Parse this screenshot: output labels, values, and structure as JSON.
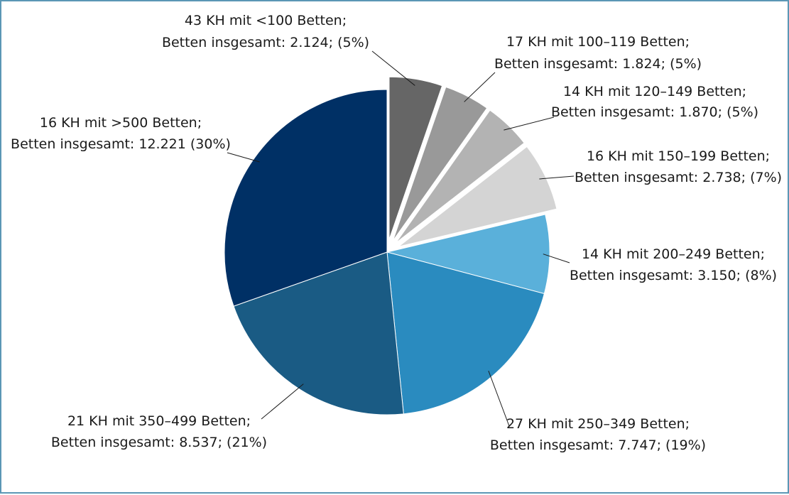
{
  "chart_data": {
    "type": "pie",
    "title": "",
    "slices": [
      {
        "label_line1": "43 KH mit <100 Betten;",
        "label_line2": "Betten insgesamt: 2.124; (5%)",
        "krankenhaeuser": 43,
        "betten": 2124,
        "percent": 5,
        "color": "#666666",
        "exploded": true
      },
      {
        "label_line1": "17 KH mit 100–119 Betten;",
        "label_line2": "Betten insgesamt: 1.824; (5%)",
        "krankenhaeuser": 17,
        "betten": 1824,
        "percent": 5,
        "color": "#999999",
        "exploded": true
      },
      {
        "label_line1": "14 KH mit 120–149 Betten;",
        "label_line2": "Betten insgesamt: 1.870; (5%)",
        "krankenhaeuser": 14,
        "betten": 1870,
        "percent": 5,
        "color": "#b3b3b3",
        "exploded": true
      },
      {
        "label_line1": "16 KH mit 150–199 Betten;",
        "label_line2": "Betten insgesamt: 2.738; (7%)",
        "krankenhaeuser": 16,
        "betten": 2738,
        "percent": 7,
        "color": "#d4d4d4",
        "exploded": true
      },
      {
        "label_line1": "14 KH mit 200–249 Betten;",
        "label_line2": "Betten insgesamt: 3.150; (8%)",
        "krankenhaeuser": 14,
        "betten": 3150,
        "percent": 8,
        "color": "#5ab0da",
        "exploded": false
      },
      {
        "label_line1": "27 KH mit 250–349 Betten;",
        "label_line2": "Betten insgesamt: 7.747; (19%)",
        "krankenhaeuser": 27,
        "betten": 7747,
        "percent": 19,
        "color": "#2a8bbf",
        "exploded": false
      },
      {
        "label_line1": "21 KH mit 350–499 Betten;",
        "label_line2": "Betten insgesamt: 8.537; (21%)",
        "krankenhaeuser": 21,
        "betten": 8537,
        "percent": 21,
        "color": "#1a5b84",
        "exploded": false
      },
      {
        "label_line1": "16 KH mit >500 Betten;",
        "label_line2": "Betten insgesamt: 12.221 (30%)",
        "krankenhaeuser": 16,
        "betten": 12221,
        "percent": 30,
        "color": "#003065",
        "exploded": false
      }
    ]
  }
}
